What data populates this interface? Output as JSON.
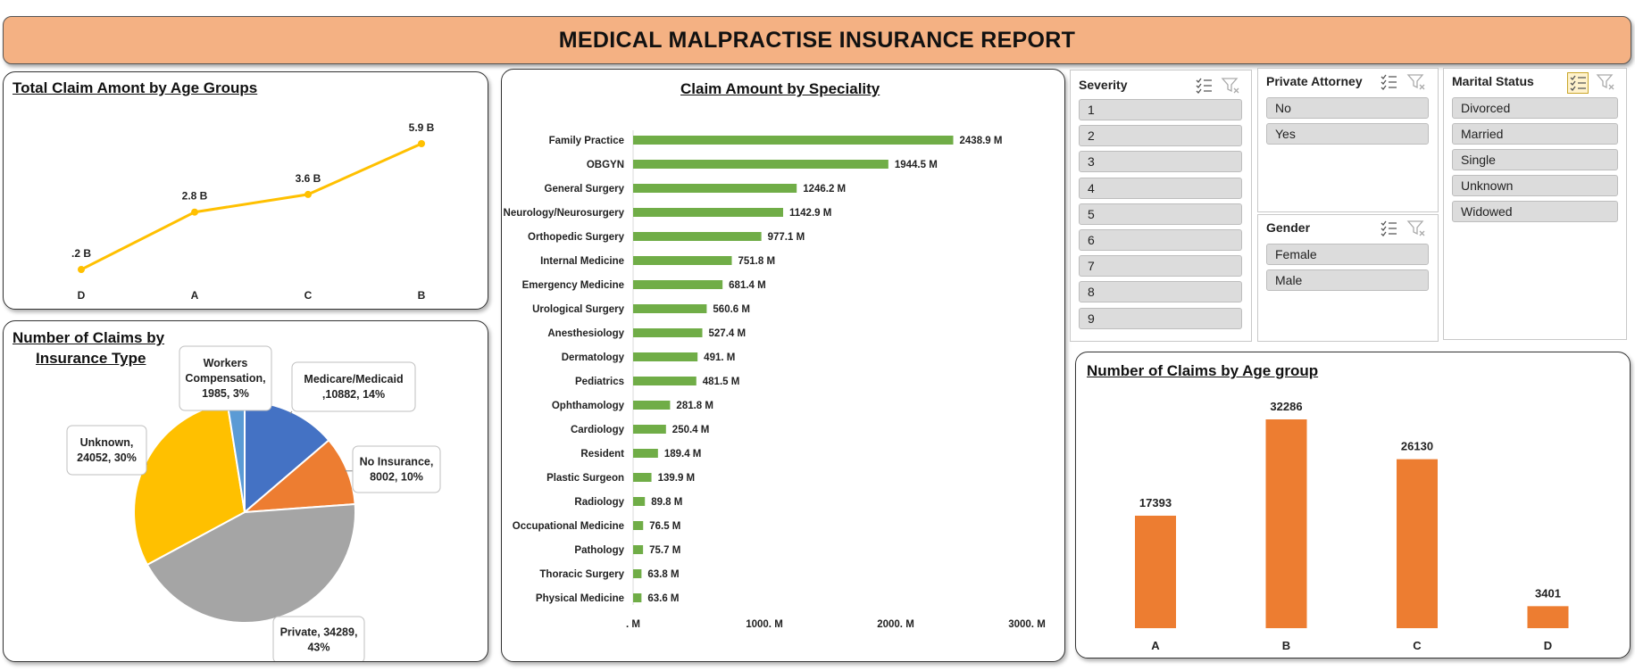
{
  "report_title": "MEDICAL MALPRACTISE INSURANCE REPORT",
  "colors": {
    "title_bg": "#f4b183",
    "line": "#ffc000",
    "speciality_bar": "#70ad47",
    "age_bar": "#ed7d31"
  },
  "age_line": {
    "title": "Total Claim Amont by Age Groups",
    "chart_data": {
      "type": "line",
      "categories": [
        "D",
        "A",
        "C",
        "B"
      ],
      "values": [
        0.2,
        2.8,
        3.6,
        5.9
      ],
      "labels": [
        ".2 B",
        "2.8 B",
        "3.6 B",
        "5.9 B"
      ],
      "unit": "B"
    }
  },
  "insurance_pie": {
    "title_line1": "Number of Claims by",
    "title_line2": "Insurance Type",
    "chart_data": {
      "type": "pie",
      "slices": [
        {
          "name": "Medicare/Medicaid",
          "value": 10882,
          "percent": "14%",
          "color": "#4472c4",
          "label_l1": "Medicare/Medicaid",
          "label_l2": ",10882, 14%"
        },
        {
          "name": "No Insurance",
          "value": 8002,
          "percent": "10%",
          "color": "#ed7d31",
          "label_l1": "No Insurance,",
          "label_l2": "8002, 10%"
        },
        {
          "name": "Private",
          "value": 34289,
          "percent": "43%",
          "color": "#a5a5a5",
          "label_l1": "Private, 34289,",
          "label_l2": "43%"
        },
        {
          "name": "Unknown",
          "value": 24052,
          "percent": "30%",
          "color": "#ffc000",
          "label_l1": "Unknown,",
          "label_l2": "24052, 30%"
        },
        {
          "name": "Workers Compensation",
          "value": 1985,
          "percent": "3%",
          "color": "#5b9bd5",
          "label_l1": "Workers",
          "label_l2": "Compensation,",
          "label_l3": "1985, 3%"
        }
      ]
    }
  },
  "speciality_bars": {
    "title": "Claim Amount by Speciality",
    "chart_data": {
      "type": "bar",
      "orientation": "horizontal",
      "categories": [
        "Family Practice",
        "OBGYN",
        "General Surgery",
        "Neurology/Neurosurgery",
        "Orthopedic Surgery",
        "Internal Medicine",
        "Emergency Medicine",
        "Urological Surgery",
        "Anesthesiology",
        "Dermatology",
        "Pediatrics",
        "Ophthamology",
        "Cardiology",
        "Resident",
        "Plastic Surgeon",
        "Radiology",
        "Occupational Medicine",
        "Pathology",
        "Thoracic Surgery",
        "Physical Medicine"
      ],
      "values": [
        2438.9,
        1944.5,
        1246.2,
        1142.9,
        977.1,
        751.8,
        681.4,
        560.6,
        527.4,
        491.0,
        481.5,
        281.8,
        250.4,
        189.4,
        139.9,
        89.8,
        76.5,
        75.7,
        63.8,
        63.6
      ],
      "labels": [
        "2438.9 M",
        "1944.5 M",
        "1246.2 M",
        "1142.9 M",
        "977.1 M",
        "751.8 M",
        "681.4 M",
        "560.6 M",
        "527.4 M",
        "491. M",
        "481.5 M",
        "281.8 M",
        "250.4 M",
        "189.4 M",
        "139.9 M",
        "89.8 M",
        "76.5 M",
        "75.7 M",
        "63.8 M",
        "63.6 M"
      ],
      "xlim": [
        0,
        3000
      ],
      "x_ticks": [
        0,
        1000,
        2000,
        3000
      ],
      "x_tick_labels": [
        ". M",
        "1000. M",
        "2000. M",
        "3000. M"
      ]
    }
  },
  "age_bars": {
    "title": "Number of Claims by Age group",
    "chart_data": {
      "type": "bar",
      "categories": [
        "A",
        "B",
        "C",
        "D"
      ],
      "values": [
        17393,
        32286,
        26130,
        3401
      ],
      "ylim": [
        0,
        35000
      ]
    }
  },
  "slicers": {
    "severity": {
      "title": "Severity",
      "items": [
        "1",
        "2",
        "3",
        "4",
        "5",
        "6",
        "7",
        "8",
        "9"
      ]
    },
    "attorney": {
      "title": "Private Attorney",
      "items": [
        "No",
        "Yes"
      ]
    },
    "gender": {
      "title": "Gender",
      "items": [
        "Female",
        "Male"
      ]
    },
    "marital": {
      "title": "Marital Status",
      "items": [
        "Divorced",
        "Married",
        "Single",
        "Unknown",
        "Widowed"
      ]
    }
  }
}
